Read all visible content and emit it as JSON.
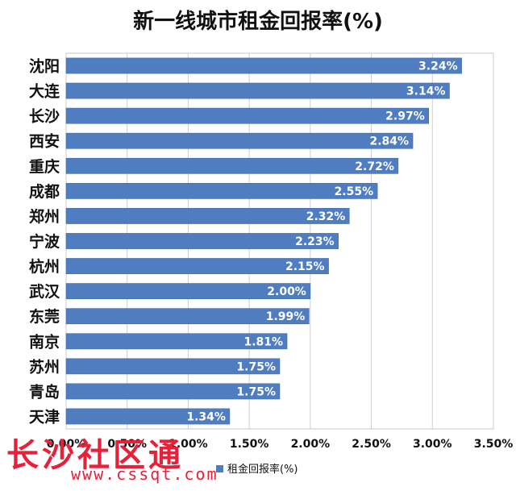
{
  "chart_data": {
    "type": "bar",
    "orientation": "horizontal",
    "title": "新一线城市租金回报率(%)",
    "categories": [
      "沈阳",
      "大连",
      "长沙",
      "西安",
      "重庆",
      "成都",
      "郑州",
      "宁波",
      "杭州",
      "武汉",
      "东莞",
      "南京",
      "苏州",
      "青岛",
      "天津"
    ],
    "series": [
      {
        "name": "租金回报率(%)",
        "color": "#4f7dbf",
        "values": [
          3.24,
          3.14,
          2.97,
          2.84,
          2.72,
          2.55,
          2.32,
          2.23,
          2.15,
          2.0,
          1.99,
          1.81,
          1.75,
          1.75,
          1.34
        ],
        "data_labels": [
          "3.24%",
          "3.14%",
          "2.97%",
          "2.84%",
          "2.72%",
          "2.55%",
          "2.32%",
          "2.23%",
          "2.15%",
          "2.00%",
          "1.99%",
          "1.81%",
          "1.75%",
          "1.75%",
          "1.34%"
        ]
      }
    ],
    "xlim": [
      0,
      3.5
    ],
    "x_ticks": [
      "0.00%",
      "0.50%",
      "1.00%",
      "1.50%",
      "2.00%",
      "2.50%",
      "3.00%",
      "3.50%"
    ],
    "grid": true,
    "legend": "bottom",
    "xlabel": "",
    "ylabel": ""
  },
  "watermark": {
    "text": "长沙社区通",
    "url": "www.cssqt.com",
    "color": "#e8213a"
  }
}
